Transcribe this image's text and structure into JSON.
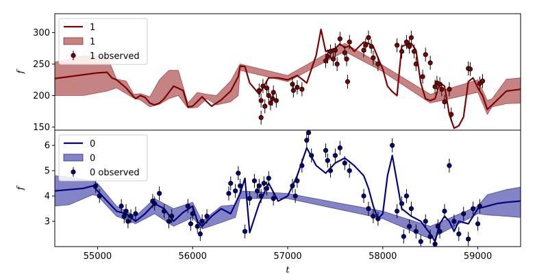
{
  "chart_data": [
    {
      "type": "line",
      "panel": "top",
      "color": "#800000",
      "fill_color": "#b35a5a",
      "xlabel": "",
      "ylabel": "f",
      "xlim": [
        54550,
        59450
      ],
      "ylim": [
        145,
        330
      ],
      "yticks": [
        150,
        200,
        250,
        300
      ],
      "xticks": [],
      "legend": {
        "placement": "top-left",
        "entries": [
          "1",
          "1",
          "1 observed"
        ]
      },
      "series": [
        {
          "name": "1",
          "kind": "line",
          "x": [
            54550,
            54700,
            54850,
            55000,
            55100,
            55150,
            55200,
            55300,
            55380,
            55400,
            55450,
            55500,
            55550,
            55600,
            55650,
            55700,
            55800,
            55900,
            55950,
            56000,
            56100,
            56150,
            56200,
            56300,
            56400,
            56480,
            56500,
            56550,
            56600,
            56700,
            56800,
            56900,
            57000,
            57100,
            57200,
            57300,
            57350,
            57400,
            57500,
            57550,
            57600,
            57650,
            57700,
            57800,
            57850,
            57900,
            57950,
            58000,
            58050,
            58100,
            58150,
            58200,
            58250,
            58300,
            58350,
            58400,
            58450,
            58500,
            58550,
            58600,
            58650,
            58700,
            58750,
            58800,
            58850,
            58900,
            58950,
            59000,
            59050,
            59100,
            59150,
            59300,
            59450
          ],
          "y": [
            227,
            230,
            233,
            236,
            237,
            228,
            225,
            212,
            198,
            195,
            200,
            197,
            188,
            185,
            188,
            195,
            215,
            208,
            182,
            183,
            198,
            190,
            183,
            193,
            207,
            230,
            247,
            246,
            220,
            202,
            228,
            228,
            225,
            232,
            220,
            264,
            305,
            270,
            275,
            282,
            276,
            279,
            270,
            285,
            283,
            278,
            260,
            242,
            215,
            206,
            200,
            278,
            281,
            283,
            272,
            220,
            195,
            192,
            195,
            220,
            215,
            170,
            148,
            152,
            166,
            222,
            228,
            212,
            200,
            178,
            185,
            207,
            210
          ]
        },
        {
          "name": "1",
          "kind": "band",
          "note": "uncertainty band",
          "x": [
            54550,
            54850,
            55100,
            55200,
            55300,
            55380,
            55450,
            55550,
            55650,
            55750,
            55850,
            55950,
            56050,
            56150,
            56250,
            56400,
            56480,
            56500,
            57000,
            57600,
            58000,
            58500,
            59000,
            59100,
            59150,
            59300,
            59450
          ],
          "lower": [
            200,
            200,
            207,
            212,
            203,
            196,
            193,
            182,
            186,
            195,
            200,
            180,
            181,
            195,
            185,
            190,
            200,
            240,
            222,
            270,
            238,
            188,
            205,
            170,
            182,
            187,
            188
          ],
          "upper": [
            253,
            263,
            262,
            226,
            223,
            202,
            203,
            198,
            225,
            240,
            240,
            188,
            205,
            202,
            200,
            223,
            245,
            250,
            232,
            283,
            248,
            202,
            225,
            192,
            195,
            226,
            228
          ]
        },
        {
          "name": "1 observed",
          "kind": "points",
          "x": [
            56700,
            56720,
            56740,
            56760,
            56780,
            56800,
            56820,
            56840,
            56850,
            56880,
            56720,
            57050,
            57060,
            57100,
            57150,
            57400,
            57420,
            57450,
            57480,
            57500,
            57520,
            57550,
            57600,
            57620,
            57630,
            57650,
            57800,
            57820,
            57850,
            57880,
            57900,
            57950,
            58150,
            58200,
            58250,
            58280,
            58300,
            58330,
            58350,
            58420,
            58450,
            58500,
            58550,
            58570,
            58600,
            58620,
            58650,
            58700,
            58720,
            58900,
            58920,
            59020,
            59050
          ],
          "y": [
            208,
            192,
            215,
            183,
            212,
            200,
            188,
            195,
            205,
            192,
            165,
            218,
            208,
            213,
            210,
            255,
            262,
            270,
            258,
            272,
            250,
            290,
            268,
            258,
            222,
            285,
            272,
            280,
            292,
            278,
            260,
            250,
            280,
            270,
            285,
            278,
            292,
            270,
            250,
            230,
            265,
            252,
            214,
            220,
            218,
            210,
            190,
            210,
            170,
            243,
            242,
            219,
            223
          ]
        }
      ]
    },
    {
      "type": "line",
      "panel": "bottom",
      "color": "#000080",
      "fill_color": "#5a5ab3",
      "xlabel": "t",
      "ylabel": "f",
      "xlim": [
        54550,
        59450
      ],
      "ylim": [
        2.0,
        6.6
      ],
      "yticks": [
        3,
        4,
        5,
        6
      ],
      "xticks": [
        55000,
        56000,
        57000,
        58000,
        59000
      ],
      "legend": {
        "placement": "top-left",
        "entries": [
          "0",
          "0",
          "0 observed"
        ]
      },
      "series": [
        {
          "name": "0",
          "kind": "line",
          "x": [
            54550,
            54700,
            54850,
            54950,
            55000,
            55100,
            55200,
            55300,
            55400,
            55500,
            55600,
            55700,
            55800,
            55900,
            56000,
            56050,
            56100,
            56200,
            56300,
            56400,
            56500,
            56550,
            56600,
            56700,
            56800,
            56900,
            57000,
            57100,
            57200,
            57300,
            57400,
            57500,
            57600,
            57700,
            57800,
            57850,
            57900,
            57950,
            58000,
            58050,
            58100,
            58200,
            58300,
            58400,
            58500,
            58550,
            58600,
            58650,
            58700,
            58750,
            58800,
            58900,
            59000,
            59100,
            59200,
            59300,
            59450
          ],
          "y": [
            4.2,
            4.25,
            4.3,
            4.4,
            4.2,
            3.8,
            3.4,
            3.3,
            3.0,
            3.3,
            3.7,
            3.5,
            3.0,
            3.35,
            3.6,
            3.0,
            2.8,
            3.2,
            3.5,
            3.3,
            4.1,
            4.7,
            2.55,
            3.7,
            4.5,
            3.8,
            4.0,
            4.8,
            5.9,
            5.2,
            4.9,
            5.3,
            5.5,
            5.2,
            4.8,
            4.3,
            3.6,
            3.1,
            3.3,
            4.8,
            5.6,
            3.5,
            3.2,
            3.0,
            2.5,
            2.2,
            2.9,
            3.2,
            3.0,
            2.6,
            3.0,
            2.9,
            3.5,
            3.6,
            3.7,
            3.75,
            3.8
          ]
        },
        {
          "name": "0",
          "kind": "band",
          "note": "uncertainty band",
          "x": [
            54550,
            54700,
            54950,
            55000,
            55200,
            55400,
            55600,
            55800,
            56000,
            56100,
            56300,
            56450,
            56500,
            57000,
            58000,
            58500,
            59000,
            59100,
            59300,
            59450
          ],
          "lower": [
            3.6,
            3.65,
            4.05,
            4.0,
            3.2,
            2.9,
            3.3,
            2.8,
            3.15,
            2.7,
            2.95,
            3.15,
            3.9,
            3.9,
            3.1,
            2.3,
            3.3,
            3.25,
            3.2,
            3.15
          ],
          "upper": [
            4.8,
            4.75,
            4.6,
            4.5,
            3.6,
            3.2,
            3.9,
            3.5,
            3.75,
            3.0,
            3.6,
            3.65,
            4.2,
            4.1,
            3.4,
            2.8,
            3.6,
            4.05,
            4.25,
            4.35
          ]
        },
        {
          "name": "0 observed",
          "kind": "points",
          "x": [
            54980,
            55020,
            55250,
            55280,
            55300,
            55320,
            55350,
            55400,
            55580,
            55600,
            55650,
            55700,
            55750,
            55780,
            55950,
            55980,
            56000,
            56050,
            56080,
            56100,
            56150,
            56380,
            56400,
            56450,
            56480,
            56500,
            56550,
            56600,
            56650,
            56680,
            56700,
            56720,
            56750,
            56780,
            56800,
            56850,
            57050,
            57080,
            57100,
            57150,
            57200,
            57220,
            57250,
            57400,
            57420,
            57450,
            57500,
            57550,
            57600,
            57650,
            57800,
            57850,
            57900,
            57950,
            58100,
            58150,
            58200,
            58220,
            58250,
            58280,
            58300,
            58350,
            58400,
            58450,
            58500,
            58550,
            58580,
            58600,
            58650,
            58700,
            58750,
            58800,
            58850,
            58900,
            58950,
            59000,
            59020
          ],
          "y": [
            4.4,
            4.0,
            3.6,
            3.2,
            3.4,
            3.0,
            3.2,
            3.3,
            3.8,
            3.7,
            4.1,
            3.4,
            3.0,
            3.2,
            3.6,
            2.9,
            3.3,
            2.8,
            2.5,
            3.0,
            3.2,
            4.1,
            4.5,
            4.2,
            4.9,
            4.4,
            2.6,
            3.9,
            4.6,
            4.2,
            4.4,
            4.0,
            4.5,
            4.3,
            4.7,
            3.9,
            4.4,
            4.0,
            4.6,
            5.2,
            6.2,
            6.5,
            5.6,
            5.8,
            5.4,
            5.0,
            5.6,
            5.9,
            5.3,
            5.0,
            4.0,
            3.5,
            3.2,
            3.1,
            6.0,
            3.4,
            3.7,
            2.4,
            4.0,
            2.8,
            3.5,
            2.6,
            2.2,
            3.0,
            2.4,
            2.1,
            2.8,
            2.6,
            3.4,
            5.2,
            3.0,
            2.5,
            3.3,
            2.3,
            3.5,
            2.9,
            3.6
          ]
        }
      ]
    }
  ]
}
